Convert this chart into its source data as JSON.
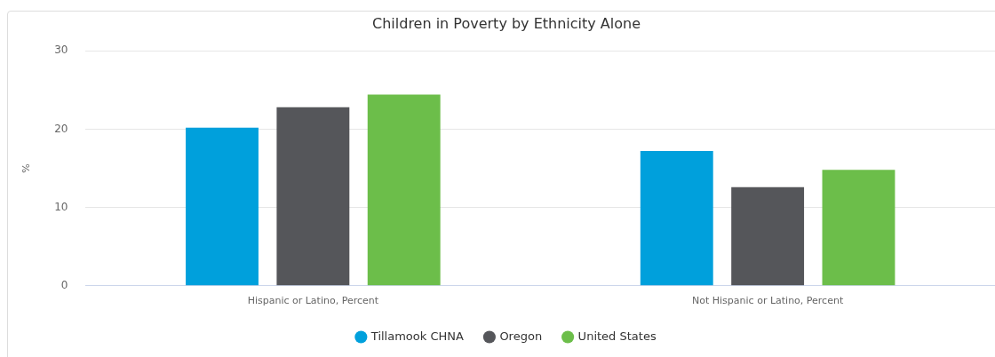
{
  "chart_data": {
    "type": "bar",
    "title": "Children in Poverty by Ethnicity Alone",
    "ylabel": "%",
    "categories": [
      "Hispanic or Latino, Percent",
      "Not Hispanic or Latino, Percent"
    ],
    "series": [
      {
        "name": "Tillamook CHNA",
        "color": "#00a0dc",
        "values": [
          20.2,
          17.2
        ]
      },
      {
        "name": "Oregon",
        "color": "#55565a",
        "values": [
          22.8,
          12.6
        ]
      },
      {
        "name": "United States",
        "color": "#6cbe4a",
        "values": [
          24.4,
          14.8
        ]
      }
    ],
    "ylim": [
      0,
      30
    ],
    "yticks": [
      0,
      10,
      20,
      30
    ],
    "grid": "y",
    "legend": "bottom"
  }
}
